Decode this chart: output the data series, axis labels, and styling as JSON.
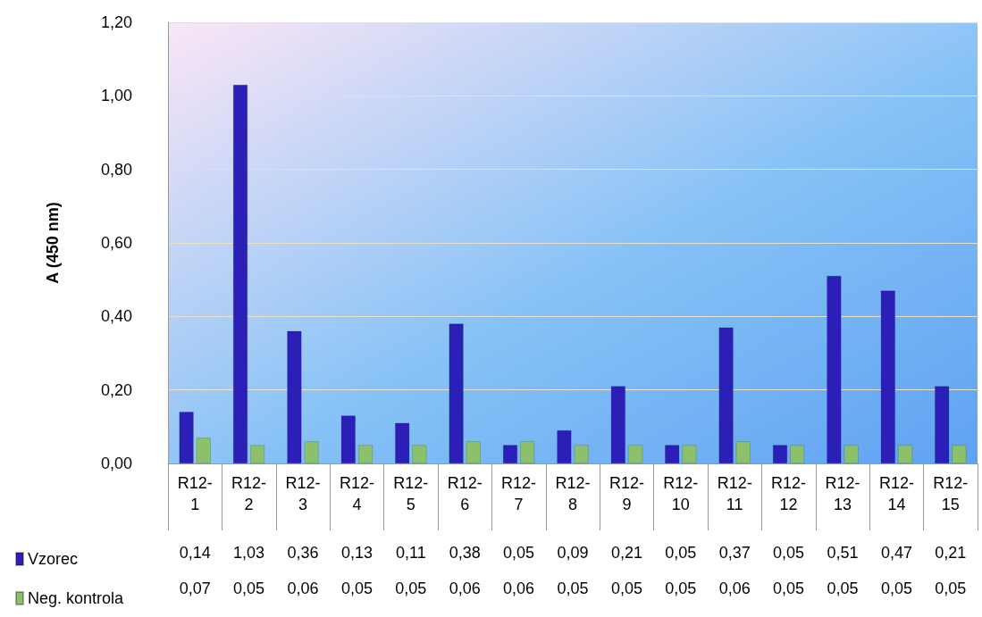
{
  "chart_data": {
    "type": "bar",
    "ylabel": "A (450 nm)",
    "categories": [
      "R12-1",
      "R12-2",
      "R12-3",
      "R12-4",
      "R12-5",
      "R12-6",
      "R12-7",
      "R12-8",
      "R12-9",
      "R12-10",
      "R12-11",
      "R12-12",
      "R12-13",
      "R12-14",
      "R12-15"
    ],
    "series": [
      {
        "name": "Vzorec",
        "color": "#2b1fb8",
        "values": [
          0.14,
          1.03,
          0.36,
          0.13,
          0.11,
          0.38,
          0.05,
          0.09,
          0.21,
          0.05,
          0.37,
          0.05,
          0.51,
          0.47,
          0.21
        ],
        "value_labels": [
          "0,14",
          "1,03",
          "0,36",
          "0,13",
          "0,11",
          "0,38",
          "0,05",
          "0,09",
          "0,21",
          "0,05",
          "0,37",
          "0,05",
          "0,51",
          "0,47",
          "0,21"
        ]
      },
      {
        "name": "Neg. kontrola",
        "color": "#8cc06a",
        "values": [
          0.07,
          0.05,
          0.06,
          0.05,
          0.05,
          0.06,
          0.06,
          0.05,
          0.05,
          0.05,
          0.06,
          0.05,
          0.05,
          0.05,
          0.05
        ],
        "value_labels": [
          "0,07",
          "0,05",
          "0,06",
          "0,05",
          "0,05",
          "0,06",
          "0,06",
          "0,05",
          "0,05",
          "0,05",
          "0,06",
          "0,05",
          "0,05",
          "0,05",
          "0,05"
        ]
      }
    ],
    "ylim": [
      0,
      1.2
    ],
    "yticks": [
      {
        "value": 0,
        "label": "0,00"
      },
      {
        "value": 0.2,
        "label": "0,20"
      },
      {
        "value": 0.4,
        "label": "0,40"
      },
      {
        "value": 0.6,
        "label": "0,60"
      },
      {
        "value": 0.8,
        "label": "0,80"
      },
      {
        "value": 1,
        "label": "1,00"
      },
      {
        "value": 1.2,
        "label": "1,20"
      }
    ],
    "grid": "y",
    "legend": "bottom left"
  }
}
